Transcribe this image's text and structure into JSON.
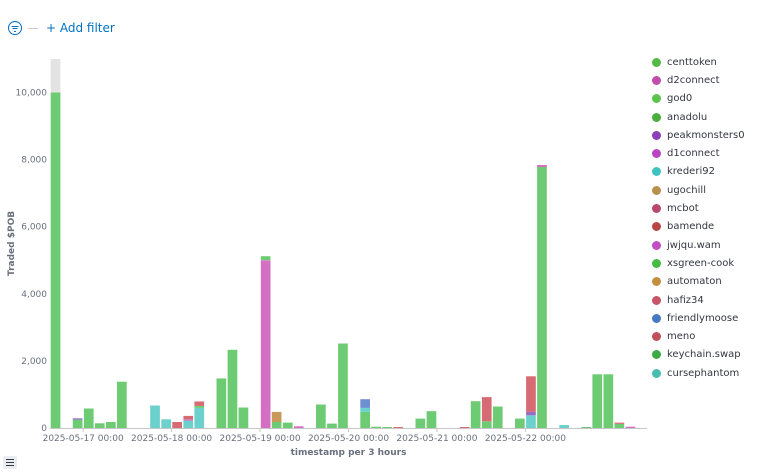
{
  "toolbar": {
    "filter_icon": "filter-icon",
    "add_filter_label": "+ Add filter"
  },
  "chart_data": {
    "type": "bar",
    "stacked": true,
    "xlabel": "timestamp per 3 hours",
    "ylabel": "Traded $POB",
    "ylim": [
      0,
      11000
    ],
    "yticks": [
      0,
      2000,
      4000,
      6000,
      8000,
      10000
    ],
    "ytick_labels": [
      "0",
      "2,000",
      "4,000",
      "6,000",
      "8,000",
      "10,000"
    ],
    "grid": false,
    "legend_position": "right",
    "x_start": "2025-05-16 15:00",
    "x_end": "2025-05-23 09:00",
    "xticks": [
      "2025-05-17 00:00",
      "2025-05-18 00:00",
      "2025-05-19 00:00",
      "2025-05-20 00:00",
      "2025-05-21 00:00",
      "2025-05-22 00:00"
    ],
    "legend": [
      {
        "name": "centtoken",
        "color": "#54b946"
      },
      {
        "name": "d2connect",
        "color": "#c24eac"
      },
      {
        "name": "god0",
        "color": "#5cc34d"
      },
      {
        "name": "anadolu",
        "color": "#4aae3f"
      },
      {
        "name": "peakmonsters0",
        "color": "#8b3fb8"
      },
      {
        "name": "d1connect",
        "color": "#b846c0"
      },
      {
        "name": "krederi92",
        "color": "#3ec4c0"
      },
      {
        "name": "ugochill",
        "color": "#b8914a"
      },
      {
        "name": "mcbot",
        "color": "#b8466e"
      },
      {
        "name": "bamende",
        "color": "#b84646"
      },
      {
        "name": "jwjqu.wam",
        "color": "#c04ec4"
      },
      {
        "name": "xsgreen-cook",
        "color": "#44bb44"
      },
      {
        "name": "automaton",
        "color": "#c49040"
      },
      {
        "name": "hafiz34",
        "color": "#c85468"
      },
      {
        "name": "friendlymoose",
        "color": "#4478c0"
      },
      {
        "name": "meno",
        "color": "#c0505a"
      },
      {
        "name": "keychain.swap",
        "color": "#3eaa44"
      },
      {
        "name": "cursephantom",
        "color": "#48bcae"
      }
    ],
    "colors": {
      "green": "#6dcc73",
      "magenta": "#d46fc4",
      "teal": "#6cd0cd",
      "red": "#d66b74",
      "blue": "#6d90d1",
      "orange": "#c79a5b",
      "purple": "#9a6bc8",
      "ghost": "#e3e3e3",
      "axis": "#c6c6c6",
      "tick_text": "#69707d"
    },
    "bars": [
      {
        "x": "2025-05-16 15:00",
        "segments": [
          {
            "c": "green",
            "v": 10000
          },
          {
            "c": "ghost",
            "v": 1000
          }
        ]
      },
      {
        "x": "2025-05-16 21:00",
        "segments": [
          {
            "c": "green",
            "v": 250
          },
          {
            "c": "purple",
            "v": 40
          }
        ]
      },
      {
        "x": "2025-05-17 00:00",
        "segments": [
          {
            "c": "green",
            "v": 580
          }
        ]
      },
      {
        "x": "2025-05-17 03:00",
        "segments": [
          {
            "c": "green",
            "v": 140
          }
        ]
      },
      {
        "x": "2025-05-17 06:00",
        "segments": [
          {
            "c": "green",
            "v": 180
          }
        ]
      },
      {
        "x": "2025-05-17 09:00",
        "segments": [
          {
            "c": "green",
            "v": 1380
          }
        ]
      },
      {
        "x": "2025-05-17 18:00",
        "segments": [
          {
            "c": "teal",
            "v": 670
          }
        ]
      },
      {
        "x": "2025-05-17 21:00",
        "segments": [
          {
            "c": "teal",
            "v": 260
          }
        ]
      },
      {
        "x": "2025-05-18 00:00",
        "segments": [
          {
            "c": "red",
            "v": 180
          }
        ]
      },
      {
        "x": "2025-05-18 03:00",
        "segments": [
          {
            "c": "teal",
            "v": 220
          },
          {
            "c": "magenta",
            "v": 40
          },
          {
            "c": "red",
            "v": 100
          }
        ]
      },
      {
        "x": "2025-05-18 06:00",
        "segments": [
          {
            "c": "teal",
            "v": 600
          },
          {
            "c": "green",
            "v": 60
          },
          {
            "c": "red",
            "v": 130
          }
        ]
      },
      {
        "x": "2025-05-18 12:00",
        "segments": [
          {
            "c": "green",
            "v": 1480
          }
        ]
      },
      {
        "x": "2025-05-18 15:00",
        "segments": [
          {
            "c": "green",
            "v": 2330
          }
        ]
      },
      {
        "x": "2025-05-18 18:00",
        "segments": [
          {
            "c": "green",
            "v": 610
          }
        ]
      },
      {
        "x": "2025-05-19 00:00",
        "segments": [
          {
            "c": "magenta",
            "v": 5000
          },
          {
            "c": "green",
            "v": 120
          }
        ]
      },
      {
        "x": "2025-05-19 03:00",
        "segments": [
          {
            "c": "green",
            "v": 180
          },
          {
            "c": "orange",
            "v": 300
          }
        ]
      },
      {
        "x": "2025-05-19 06:00",
        "segments": [
          {
            "c": "green",
            "v": 160
          }
        ]
      },
      {
        "x": "2025-05-19 09:00",
        "segments": [
          {
            "c": "magenta",
            "v": 50
          }
        ]
      },
      {
        "x": "2025-05-19 15:00",
        "segments": [
          {
            "c": "green",
            "v": 700
          }
        ]
      },
      {
        "x": "2025-05-19 18:00",
        "segments": [
          {
            "c": "green",
            "v": 130
          }
        ]
      },
      {
        "x": "2025-05-19 21:00",
        "segments": [
          {
            "c": "green",
            "v": 2520
          }
        ]
      },
      {
        "x": "2025-05-20 03:00",
        "segments": [
          {
            "c": "green",
            "v": 480
          },
          {
            "c": "teal",
            "v": 120
          },
          {
            "c": "blue",
            "v": 260
          }
        ]
      },
      {
        "x": "2025-05-20 06:00",
        "segments": [
          {
            "c": "green",
            "v": 40
          }
        ]
      },
      {
        "x": "2025-05-20 09:00",
        "segments": [
          {
            "c": "green",
            "v": 30
          }
        ]
      },
      {
        "x": "2025-05-20 12:00",
        "segments": [
          {
            "c": "red",
            "v": 30
          }
        ]
      },
      {
        "x": "2025-05-20 18:00",
        "segments": [
          {
            "c": "green",
            "v": 280
          }
        ]
      },
      {
        "x": "2025-05-20 21:00",
        "segments": [
          {
            "c": "green",
            "v": 500
          }
        ]
      },
      {
        "x": "2025-05-21 06:00",
        "segments": [
          {
            "c": "red",
            "v": 30
          }
        ]
      },
      {
        "x": "2025-05-21 09:00",
        "segments": [
          {
            "c": "green",
            "v": 800
          }
        ]
      },
      {
        "x": "2025-05-21 12:00",
        "segments": [
          {
            "c": "green",
            "v": 200
          },
          {
            "c": "red",
            "v": 720
          }
        ]
      },
      {
        "x": "2025-05-21 15:00",
        "segments": [
          {
            "c": "green",
            "v": 640
          }
        ]
      },
      {
        "x": "2025-05-21 21:00",
        "segments": [
          {
            "c": "green",
            "v": 280
          }
        ]
      },
      {
        "x": "2025-05-22 00:00",
        "segments": [
          {
            "c": "teal",
            "v": 380
          },
          {
            "c": "purple",
            "v": 100
          },
          {
            "c": "red",
            "v": 1060
          }
        ]
      },
      {
        "x": "2025-05-22 03:00",
        "segments": [
          {
            "c": "green",
            "v": 7780
          },
          {
            "c": "magenta",
            "v": 60
          }
        ]
      },
      {
        "x": "2025-05-22 09:00",
        "segments": [
          {
            "c": "teal",
            "v": 90
          }
        ]
      },
      {
        "x": "2025-05-22 15:00",
        "segments": [
          {
            "c": "green",
            "v": 30
          }
        ]
      },
      {
        "x": "2025-05-22 18:00",
        "segments": [
          {
            "c": "green",
            "v": 1600
          }
        ]
      },
      {
        "x": "2025-05-22 21:00",
        "segments": [
          {
            "c": "green",
            "v": 1600
          }
        ]
      },
      {
        "x": "2025-05-23 00:00",
        "segments": [
          {
            "c": "green",
            "v": 120
          },
          {
            "c": "red",
            "v": 40
          }
        ]
      },
      {
        "x": "2025-05-23 03:00",
        "segments": [
          {
            "c": "magenta",
            "v": 40
          }
        ]
      }
    ]
  }
}
